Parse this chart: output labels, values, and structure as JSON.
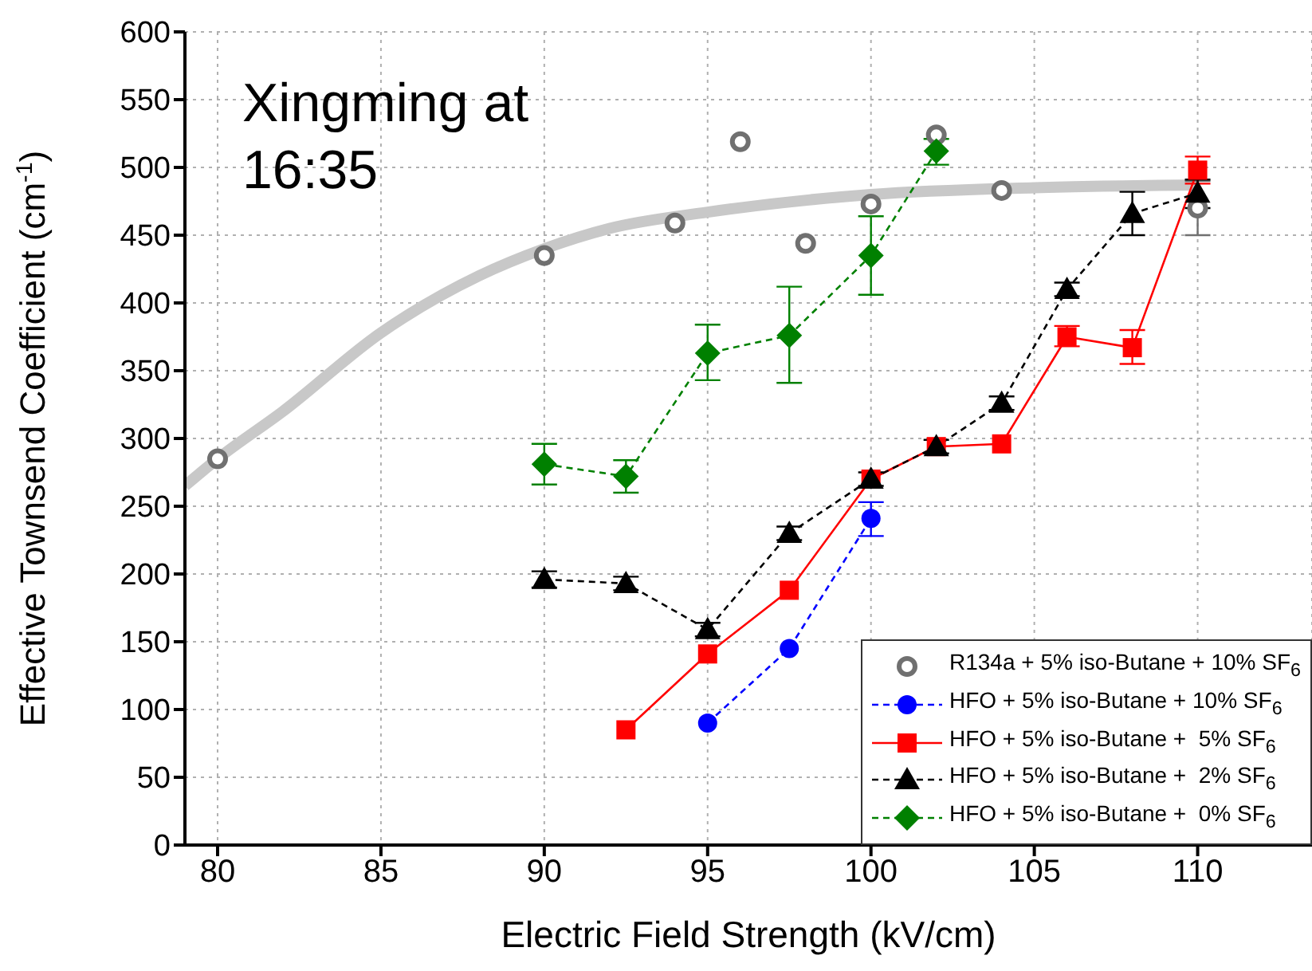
{
  "chart_data": {
    "type": "line",
    "xlabel": "Electric Field Strength (kV/cm)",
    "ylabel": "Effective Townsend Coefficient (cm$^{-1}$)",
    "annotations": [
      "Xingming at 16:35"
    ],
    "xlim": [
      79,
      113.5
    ],
    "xticks": [
      80,
      85,
      90,
      95,
      100,
      105,
      110
    ],
    "ylim": [
      0,
      600
    ],
    "yticks": [
      0,
      50,
      100,
      150,
      200,
      250,
      300,
      350,
      400,
      450,
      500,
      550,
      600
    ],
    "grid": true,
    "legend": "bottom right",
    "series": [
      {
        "color": "#c8c8c8",
        "marker": "none",
        "line_style": "solid",
        "x": [
          79,
          80,
          82,
          85,
          88,
          90,
          92,
          95,
          100,
          105,
          110
        ],
        "values": [
          265,
          285,
          320,
          378,
          420,
          440,
          455,
          467,
          480,
          485,
          487
        ]
      },
      {
        "type": "scatter",
        "name": "R134a + 5% iso-Butane + 10% SF$_{6}$",
        "color": "#707070",
        "marker": "circle",
        "x": [
          80,
          90,
          94,
          96,
          98,
          100,
          102,
          104,
          110
        ],
        "values": [
          285,
          435,
          459,
          519,
          444,
          473,
          524,
          483,
          470
        ],
        "errors": [
          null,
          null,
          null,
          null,
          null,
          null,
          null,
          null,
          [
            450,
            490
          ]
        ]
      },
      {
        "name": "HFO + 5% iso-Butane + 10% SF$_{6}$",
        "color": "#0000ff",
        "marker": "circle",
        "line_style": "dashed",
        "x": [
          95,
          97.5,
          100
        ],
        "values": [
          90,
          145,
          241
        ],
        "errors": [
          null,
          null,
          [
            228,
            253
          ]
        ]
      },
      {
        "name": "HFO + 5% iso-Butane +  5% SF$_{6}$",
        "color": "#ff0000",
        "marker": "square",
        "line_style": "solid",
        "x": [
          92.5,
          95,
          97.5,
          100,
          102,
          104,
          106,
          108,
          110
        ],
        "values": [
          85,
          141,
          188,
          270,
          294,
          296,
          375,
          367,
          498
        ],
        "errors": [
          null,
          null,
          null,
          null,
          null,
          null,
          [
            368,
            383
          ],
          [
            355,
            380
          ],
          [
            488,
            508
          ]
        ]
      },
      {
        "name": "HFO + 5% iso-Butane +  2% SF$_{6}$",
        "color": "#000000",
        "marker": "triangle",
        "line_style": "dashed",
        "x": [
          90,
          92.5,
          95,
          97.5,
          100,
          102,
          104,
          106,
          108,
          110
        ],
        "values": [
          196,
          193,
          159,
          230,
          270,
          294,
          326,
          410,
          466,
          481
        ],
        "errors": [
          6,
          5,
          5,
          5,
          5,
          5,
          5,
          5,
          [
            450,
            482
          ],
          [
            470,
            491
          ]
        ]
      },
      {
        "name": "HFO + 5% iso-Butane +  0% SF$_{6}$",
        "color": "#008000",
        "marker": "diamond",
        "line_style": "dashed",
        "x": [
          90,
          92.5,
          95,
          97.5,
          100,
          102
        ],
        "values": [
          281,
          272,
          363,
          376,
          435,
          512
        ],
        "errors": [
          [
            266,
            296
          ],
          [
            260,
            284
          ],
          [
            343,
            384
          ],
          [
            341,
            412
          ],
          [
            406,
            464
          ],
          [
            502,
            521
          ]
        ]
      }
    ]
  }
}
